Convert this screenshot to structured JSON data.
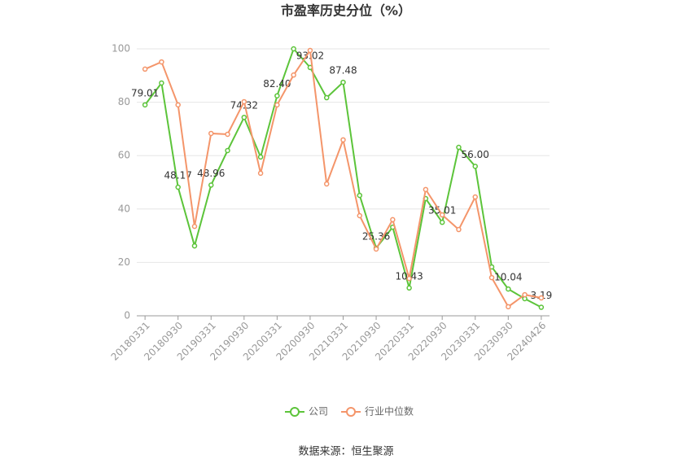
{
  "chart_data": {
    "type": "line",
    "title": "市盈率历史分位（%）",
    "source": "数据来源：恒生聚源",
    "categories": [
      "20180331",
      null,
      "20180930",
      null,
      "20190331",
      null,
      "20190930",
      null,
      "20200331",
      null,
      "20200930",
      null,
      "20210331",
      null,
      "20210930",
      null,
      "20220331",
      null,
      "20220930",
      null,
      "20230331",
      null,
      "20230930",
      null,
      "20240426"
    ],
    "series": [
      {
        "name": "公司",
        "color": "#5cc43a",
        "values": [
          79.01,
          87.2,
          48.17,
          26.2,
          48.96,
          61.9,
          74.32,
          59.5,
          82.4,
          100,
          93.02,
          81.7,
          87.48,
          45.1,
          25.36,
          33.2,
          10.43,
          43.9,
          35.01,
          63.1,
          56.0,
          18.3,
          10.04,
          6.4,
          3.19
        ],
        "value_labels": [
          "79.01",
          null,
          "48.17",
          null,
          "48.96",
          null,
          "74.32",
          null,
          "82.40",
          null,
          "93.02",
          null,
          "87.48",
          null,
          "25.36",
          null,
          "10.43",
          null,
          "35.01",
          null,
          "56.00",
          null,
          "10.04",
          null,
          "3.19"
        ]
      },
      {
        "name": "行业中位数",
        "color": "#f4956a",
        "values": [
          92.4,
          95.1,
          79.0,
          33.5,
          68.3,
          68.0,
          80.2,
          53.4,
          79.0,
          90.2,
          99.4,
          49.4,
          65.9,
          37.5,
          25.0,
          36.0,
          14.0,
          47.3,
          37.8,
          32.3,
          44.5,
          14.3,
          3.4,
          7.9,
          6.7
        ]
      }
    ],
    "ylim": [
      0,
      100
    ],
    "yticks": [
      0,
      20,
      40,
      60,
      80,
      100
    ],
    "grid": true,
    "legend": "bottom"
  }
}
